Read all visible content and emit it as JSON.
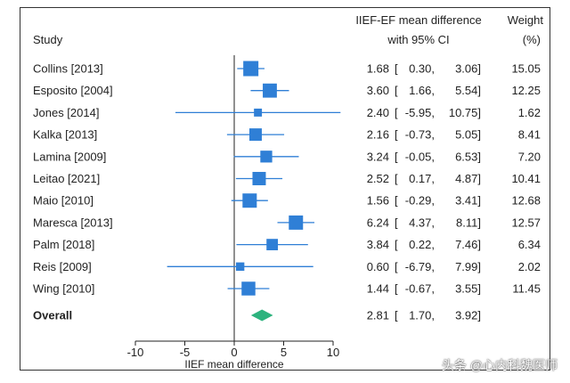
{
  "chart_data": {
    "type": "forest",
    "columns": {
      "study": "Study",
      "effect_line1": "IIEF-EF mean difference",
      "effect_line2": "with 95% CI",
      "weight_line1": "Weight",
      "weight_line2": "(%)"
    },
    "studies": [
      {
        "name": "Collins [2013]",
        "md": 1.68,
        "lo": 0.3,
        "hi": 3.06,
        "weight": 15.05,
        "md_text": "1.68",
        "lo_text": "0.30,",
        "hi_text": "3.06]",
        "weight_text": "15.05"
      },
      {
        "name": "Esposito [2004]",
        "md": 3.6,
        "lo": 1.66,
        "hi": 5.54,
        "weight": 12.25,
        "md_text": "3.60",
        "lo_text": "1.66,",
        "hi_text": "5.54]",
        "weight_text": "12.25"
      },
      {
        "name": "Jones [2014]",
        "md": 2.4,
        "lo": -5.95,
        "hi": 10.75,
        "weight": 1.62,
        "md_text": "2.40",
        "lo_text": "-5.95,",
        "hi_text": "10.75]",
        "weight_text": "1.62"
      },
      {
        "name": "Kalka [2013]",
        "md": 2.16,
        "lo": -0.73,
        "hi": 5.05,
        "weight": 8.41,
        "md_text": "2.16",
        "lo_text": "-0.73,",
        "hi_text": "5.05]",
        "weight_text": "8.41"
      },
      {
        "name": "Lamina [2009]",
        "md": 3.24,
        "lo": -0.05,
        "hi": 6.53,
        "weight": 7.2,
        "md_text": "3.24",
        "lo_text": "-0.05,",
        "hi_text": "6.53]",
        "weight_text": "7.20"
      },
      {
        "name": "Leitao [2021]",
        "md": 2.52,
        "lo": 0.17,
        "hi": 4.87,
        "weight": 10.41,
        "md_text": "2.52",
        "lo_text": "0.17,",
        "hi_text": "4.87]",
        "weight_text": "10.41"
      },
      {
        "name": "Maio [2010]",
        "md": 1.56,
        "lo": -0.29,
        "hi": 3.41,
        "weight": 12.68,
        "md_text": "1.56",
        "lo_text": "-0.29,",
        "hi_text": "3.41]",
        "weight_text": "12.68"
      },
      {
        "name": "Maresca [2013]",
        "md": 6.24,
        "lo": 4.37,
        "hi": 8.11,
        "weight": 12.57,
        "md_text": "6.24",
        "lo_text": "4.37,",
        "hi_text": "8.11]",
        "weight_text": "12.57"
      },
      {
        "name": "Palm [2018]",
        "md": 3.84,
        "lo": 0.22,
        "hi": 7.46,
        "weight": 6.34,
        "md_text": "3.84",
        "lo_text": "0.22,",
        "hi_text": "7.46]",
        "weight_text": "6.34"
      },
      {
        "name": "Reis [2009]",
        "md": 0.6,
        "lo": -6.79,
        "hi": 7.99,
        "weight": 2.02,
        "md_text": "0.60",
        "lo_text": "-6.79,",
        "hi_text": "7.99]",
        "weight_text": "2.02"
      },
      {
        "name": "Wing [2010]",
        "md": 1.44,
        "lo": -0.67,
        "hi": 3.55,
        "weight": 11.45,
        "md_text": "1.44",
        "lo_text": "-0.67,",
        "hi_text": "3.55]",
        "weight_text": "11.45"
      }
    ],
    "overall": {
      "name": "Overall",
      "md": 2.81,
      "lo": 1.7,
      "hi": 3.92,
      "md_text": "2.81",
      "lo_text": "1.70,",
      "hi_text": "3.92]"
    },
    "xaxis": {
      "label": "IIEF mean difference",
      "ticks": [
        -10,
        -5,
        0,
        5,
        10
      ],
      "range": [
        -10,
        10
      ]
    },
    "colors": {
      "box": "#2f7fd6",
      "line": "#2f7fd6",
      "diamond": "#2db37e",
      "axis": "#222222"
    }
  },
  "watermark": "头条 @心内科魏医师"
}
